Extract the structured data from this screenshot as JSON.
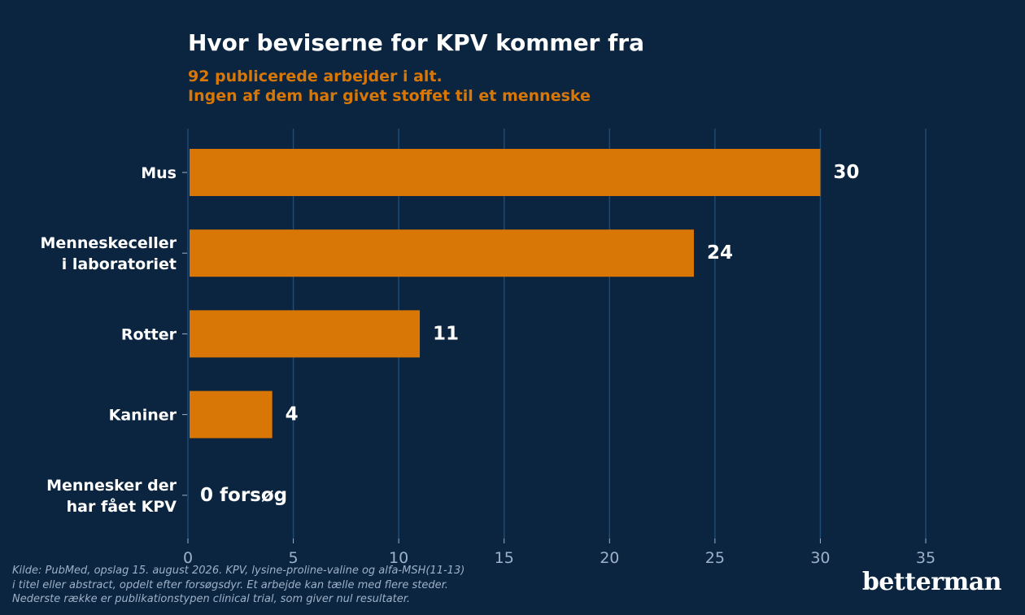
{
  "chart_data": {
    "type": "bar",
    "orientation": "horizontal",
    "title": "Hvor beviserne for KPV kommer fra",
    "subtitle": [
      "92 publicerede arbejder i alt.",
      "Ingen af dem har givet stoffet til et menneske"
    ],
    "categories": [
      [
        "Mus"
      ],
      [
        "Menneskeceller",
        "i laboratoriet"
      ],
      [
        "Rotter"
      ],
      [
        "Kaniner"
      ],
      [
        "Mennesker der",
        "har fået KPV"
      ]
    ],
    "values": [
      30,
      24,
      11,
      4,
      0
    ],
    "data_labels": [
      "30",
      "24",
      "11",
      "4",
      "0 forsøg"
    ],
    "xlim": [
      0,
      35
    ],
    "x_ticks": [
      0,
      5,
      10,
      15,
      20,
      25,
      30,
      35
    ],
    "grid": "vertical",
    "bar_color": "#d97706",
    "grid_color": "#1f4a72",
    "background": "#0b2540"
  },
  "footer": {
    "lines": [
      "Kilde: PubMed, opslag 15. august 2026. KPV, lysine-proline-valine og alfa-MSH(11-13)",
      "i titel eller abstract, opdelt efter forsøgsdyr. Et arbejde kan tælle med flere steder.",
      "Nederste række er publikationstypen clinical trial, som giver nul resultater."
    ]
  },
  "brand": "betterman"
}
